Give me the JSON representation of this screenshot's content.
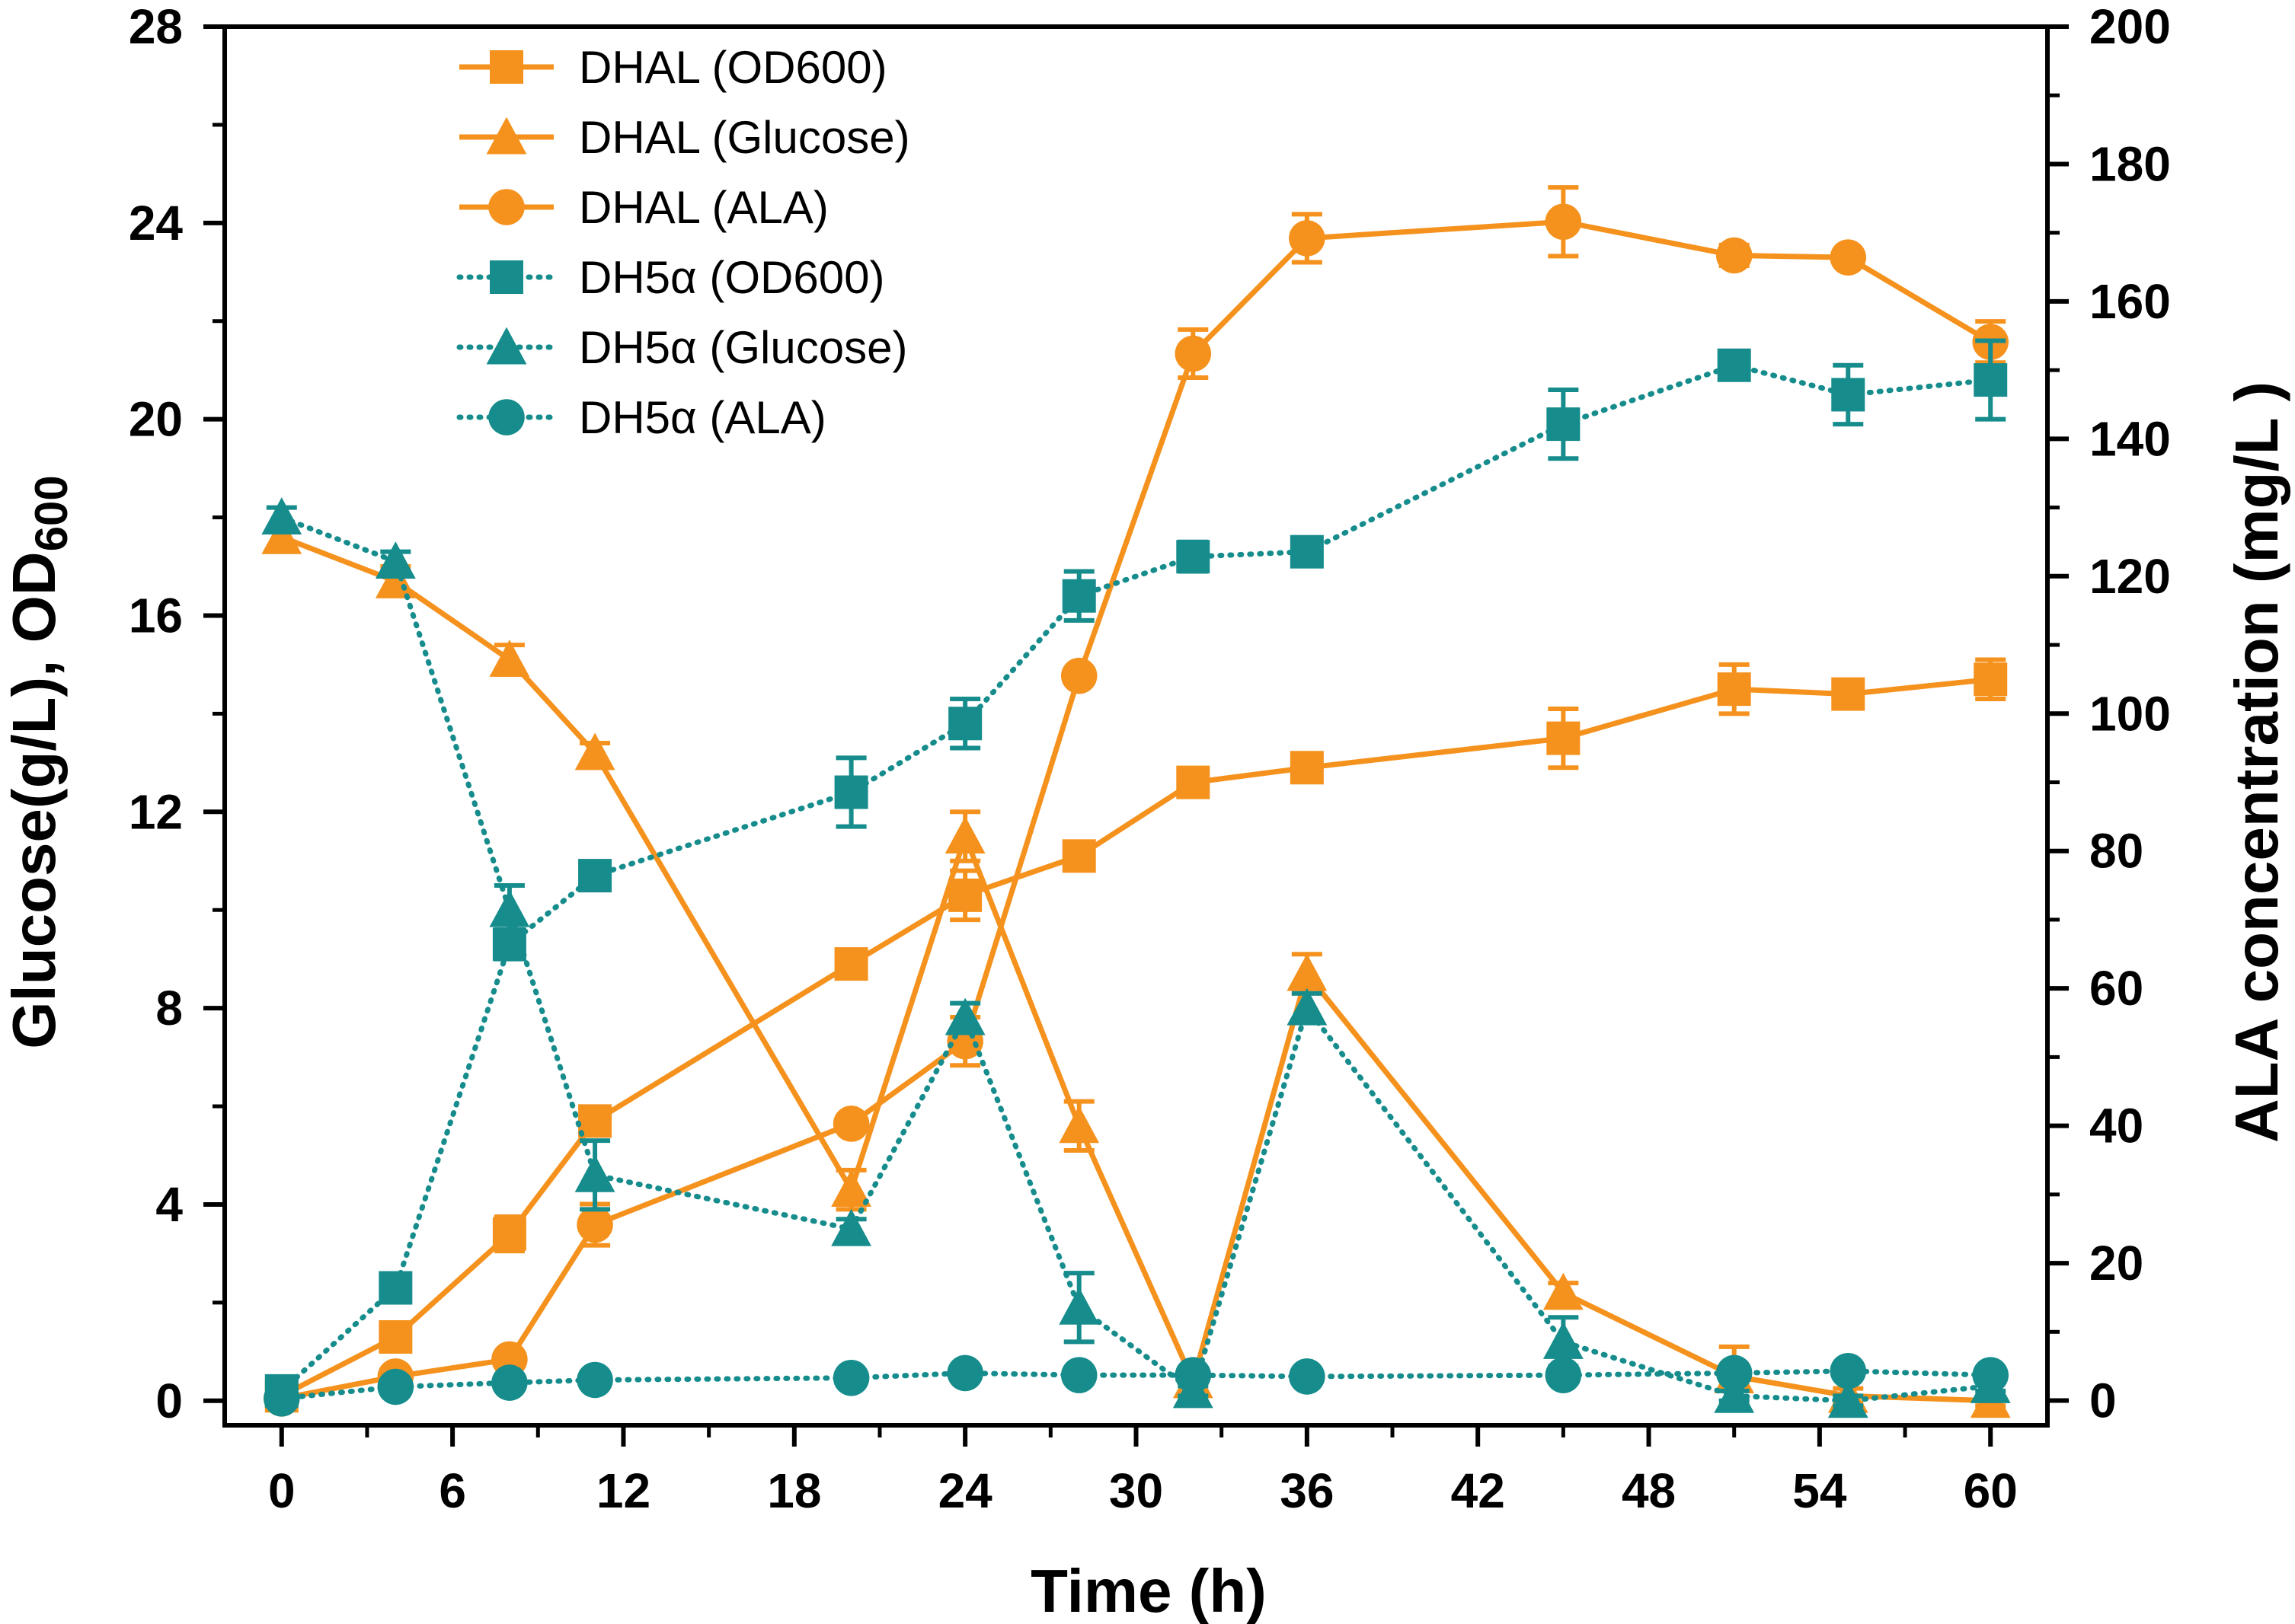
{
  "chart_data": {
    "type": "line",
    "title": "",
    "xlabel": "Time (h)",
    "ylabel_left": "Glucose(g/L), OD600",
    "ylabel_left_parts": [
      "Glucose(g/L), OD",
      "600"
    ],
    "ylabel_right": "ALA concentration (mg/L )",
    "xlim": [
      -2,
      62
    ],
    "ylim_left": [
      -0.5,
      28
    ],
    "ylim_right": [
      -3.6,
      200
    ],
    "xticks": [
      0,
      6,
      12,
      18,
      24,
      30,
      36,
      42,
      48,
      54,
      60
    ],
    "yticks_left": [
      0,
      4,
      8,
      12,
      16,
      20,
      24,
      28
    ],
    "yticks_right": [
      0,
      20,
      40,
      60,
      80,
      100,
      120,
      140,
      160,
      180,
      200
    ],
    "grid": false,
    "legend_position": "top-left",
    "colors": {
      "DHAL": "#f5921e",
      "DH5a": "#168c8c"
    },
    "series": [
      {
        "name": "DHAL (OD600)",
        "axis": "left",
        "marker": "square",
        "line": "solid",
        "color": "#f5921e",
        "x": [
          0,
          4,
          8,
          11,
          20,
          24,
          28,
          32,
          36,
          45,
          51,
          55,
          60
        ],
        "y": [
          0.1,
          1.3,
          3.4,
          5.7,
          8.9,
          10.3,
          11.1,
          12.6,
          12.9,
          13.5,
          14.5,
          14.4,
          14.7
        ],
        "err": [
          0.1,
          0.2,
          0.35,
          0.25,
          0.25,
          0.5,
          0.2,
          0.2,
          0.2,
          0.6,
          0.5,
          0.25,
          0.4
        ]
      },
      {
        "name": "DHAL (Glucose)",
        "axis": "left",
        "marker": "triangle",
        "line": "solid",
        "color": "#f5921e",
        "x": [
          0,
          4,
          8,
          11,
          20,
          24,
          28,
          32,
          36,
          45,
          51,
          55,
          60
        ],
        "y": [
          17.6,
          16.7,
          15.1,
          13.2,
          4.3,
          11.5,
          5.6,
          0.4,
          8.7,
          2.2,
          0.5,
          0.1,
          0.0
        ],
        "err": [
          0.2,
          0.3,
          0.3,
          0.2,
          0.4,
          0.5,
          0.5,
          0.25,
          0.4,
          0.2,
          0.6,
          0.15,
          0.1
        ]
      },
      {
        "name": "DHAL (ALA)",
        "axis": "right",
        "marker": "circle",
        "line": "solid",
        "color": "#f5921e",
        "x": [
          0,
          4,
          8,
          11,
          20,
          24,
          28,
          32,
          36,
          45,
          51,
          55,
          60
        ],
        "y": [
          0.3,
          3.5,
          6.0,
          25.6,
          40.3,
          52.3,
          105.5,
          152.4,
          169.2,
          171.6,
          166.7,
          166.4,
          154.1
        ],
        "err": [
          0.3,
          0.5,
          0.8,
          3.0,
          1.0,
          3.5,
          1.0,
          3.5,
          3.5,
          5.0,
          1.5,
          1.0,
          3.0
        ]
      },
      {
        "name": "DH5α (OD600)",
        "axis": "left",
        "marker": "square",
        "line": "dotted",
        "color": "#168c8c",
        "x": [
          0,
          4,
          8,
          11,
          20,
          24,
          28,
          32,
          36,
          45,
          51,
          55,
          60
        ],
        "y": [
          0.2,
          2.3,
          9.3,
          10.7,
          12.4,
          13.8,
          16.4,
          17.2,
          17.3,
          19.9,
          21.1,
          20.5,
          20.8
        ],
        "err": [
          0.1,
          0.15,
          0.3,
          0.2,
          0.7,
          0.5,
          0.5,
          0.3,
          0.2,
          0.7,
          0.2,
          0.6,
          0.8
        ]
      },
      {
        "name": "DH5α (Glucose)",
        "axis": "left",
        "marker": "triangle",
        "line": "dotted",
        "color": "#168c8c",
        "x": [
          0,
          4,
          8,
          11,
          20,
          24,
          28,
          32,
          36,
          45,
          51,
          55,
          60
        ],
        "y": [
          18.0,
          17.1,
          10.0,
          4.6,
          3.5,
          7.8,
          1.9,
          0.2,
          8.0,
          1.2,
          0.1,
          0.0,
          0.3
        ],
        "err": [
          0.2,
          0.2,
          0.5,
          0.7,
          0.2,
          0.3,
          0.7,
          0.1,
          0.3,
          0.5,
          0.1,
          0.1,
          0.1
        ]
      },
      {
        "name": "DH5α (ALA)",
        "axis": "right",
        "marker": "circle",
        "line": "dotted",
        "color": "#168c8c",
        "x": [
          0,
          4,
          8,
          11,
          20,
          24,
          28,
          32,
          36,
          45,
          51,
          55,
          60
        ],
        "y": [
          0.3,
          2.0,
          2.6,
          3.0,
          3.3,
          4.0,
          3.7,
          3.7,
          3.5,
          3.7,
          4.0,
          4.3,
          3.7
        ],
        "err": [
          0.3,
          0.3,
          0.3,
          0.3,
          0.3,
          0.3,
          0.3,
          0.3,
          0.3,
          0.3,
          0.3,
          0.3,
          0.3
        ]
      }
    ]
  }
}
